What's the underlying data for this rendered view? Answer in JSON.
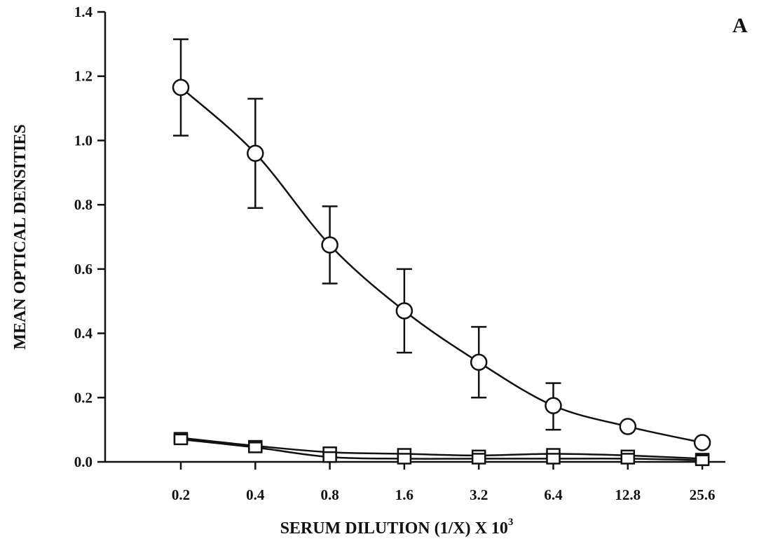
{
  "chart_data": {
    "type": "line",
    "panel_label": "A",
    "xlabel": "SERUM DILUTION (1/X) X 10",
    "xlabel_superscript": "3",
    "ylabel": "MEAN OPTICAL DENSITIES",
    "categories": [
      "0.2",
      "0.4",
      "0.8",
      "1.6",
      "3.2",
      "6.4",
      "12.8",
      "25.6"
    ],
    "ylim": [
      0,
      1.4
    ],
    "yticks": [
      "0.0",
      "0.2",
      "0.4",
      "0.6",
      "0.8",
      "1.0",
      "1.2",
      "1.4"
    ],
    "grid": false,
    "series": [
      {
        "marker": "circle",
        "values": [
          1.165,
          0.96,
          0.675,
          0.47,
          0.31,
          0.175,
          0.11,
          0.06
        ],
        "error_low": [
          1.015,
          0.79,
          0.555,
          0.34,
          0.2,
          0.1,
          null,
          null
        ],
        "error_high": [
          1.315,
          1.13,
          0.795,
          0.6,
          0.42,
          0.245,
          null,
          null
        ]
      },
      {
        "marker": "square",
        "values": [
          0.075,
          0.05,
          0.03,
          0.025,
          0.02,
          0.025,
          0.02,
          0.01
        ]
      },
      {
        "marker": "square",
        "values": [
          0.07,
          0.045,
          0.015,
          0.01,
          0.01,
          0.01,
          0.01,
          0.005
        ]
      }
    ],
    "colors": {
      "ink": "#111111",
      "background": "#ffffff"
    }
  }
}
